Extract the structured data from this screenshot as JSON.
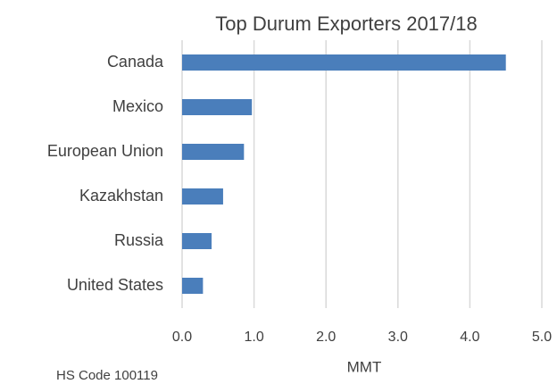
{
  "chart_data": {
    "type": "bar",
    "orientation": "horizontal",
    "title": "Top Durum Exporters 2017/18",
    "categories": [
      "Canada",
      "Mexico",
      "European Union",
      "Kazakhstan",
      "Russia",
      "United States"
    ],
    "values": [
      4.5,
      0.97,
      0.86,
      0.57,
      0.41,
      0.29
    ],
    "color": "#4a7ebb",
    "xlim": [
      0,
      5
    ],
    "xticks": [
      {
        "value": 0,
        "label": "0.0"
      },
      {
        "value": 1,
        "label": "1.0"
      },
      {
        "value": 2,
        "label": "2.0"
      },
      {
        "value": 3,
        "label": "3.0"
      },
      {
        "value": 4,
        "label": "4.0"
      },
      {
        "value": 5,
        "label": "5.0"
      }
    ],
    "x_label": "MMT",
    "annotation": "HS Code 100119",
    "grid": true
  }
}
